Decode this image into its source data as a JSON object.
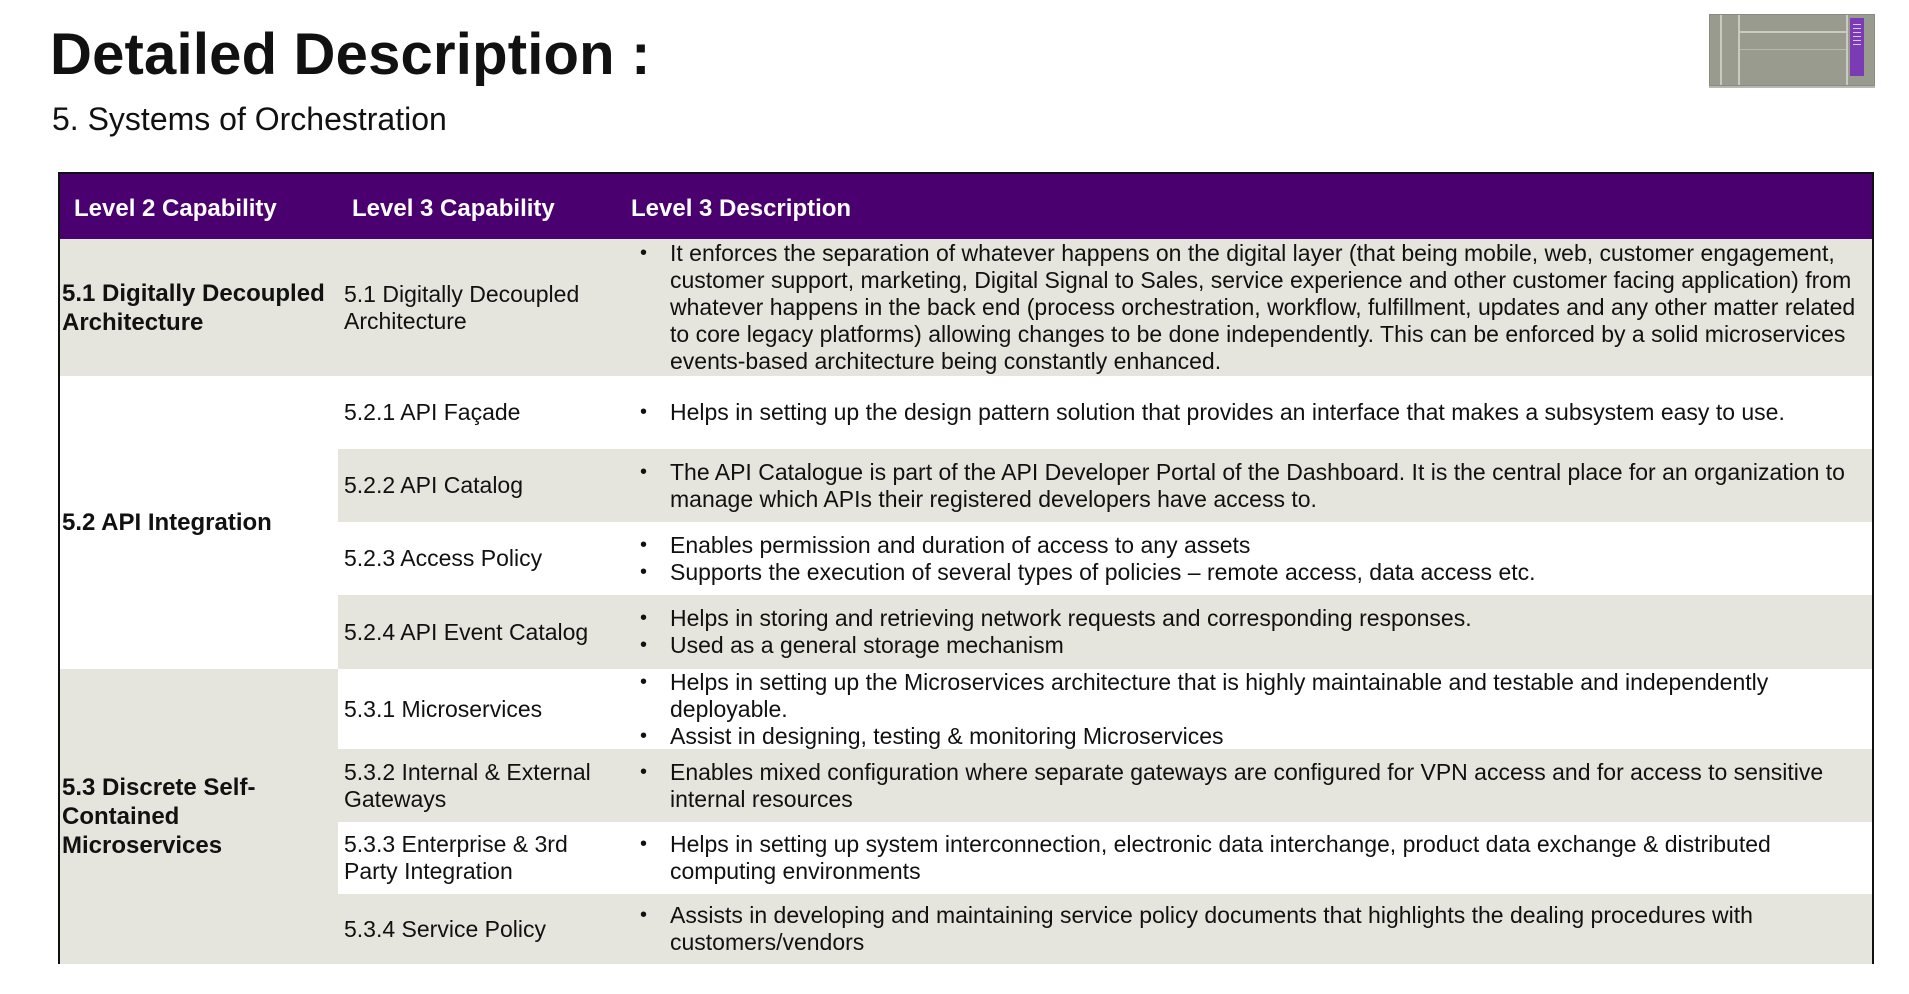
{
  "slide": {
    "title": "Detailed Description :",
    "subtitle": "5. Systems of Orchestration"
  },
  "table": {
    "headers": [
      "Level 2 Capability",
      "Level 3 Capability",
      "Level 3 Description"
    ],
    "groups": [
      {
        "level2": "5.1 Digitally Decoupled Architecture",
        "rows": [
          {
            "level3": "5.1 Digitally Decoupled Architecture",
            "bullets": [
              "It enforces the separation of whatever happens on the digital layer (that being mobile, web, customer engagement, customer support, marketing, Digital Signal to Sales, service experience and other customer facing application) from whatever happens in the back end (process orchestration, workflow, fulfillment, updates and any other matter related to core legacy platforms) allowing changes to be done independently. This can be enforced by a solid microservices events-based architecture being constantly enhanced."
            ]
          }
        ]
      },
      {
        "level2": "5.2 API Integration",
        "rows": [
          {
            "level3": "5.2.1 API Façade",
            "bullets": [
              "Helps in setting up the design pattern solution that provides an interface that makes a subsystem easy to use."
            ]
          },
          {
            "level3": "5.2.2 API Catalog",
            "bullets": [
              "The API Catalogue is part of the API Developer Portal of the Dashboard. It is the central place for an organization to manage which APIs their registered developers have access to."
            ]
          },
          {
            "level3": "5.2.3 Access Policy",
            "bullets": [
              "Enables permission and duration of access to any assets",
              "Supports the execution of several types of policies – remote access, data access etc."
            ]
          },
          {
            "level3": "5.2.4 API Event Catalog",
            "bullets": [
              "Helps in storing and retrieving network requests and corresponding responses.",
              "Used as a general storage mechanism"
            ]
          }
        ]
      },
      {
        "level2": "5.3 Discrete Self-Contained Microservices",
        "rows": [
          {
            "level3": "5.3.1 Microservices",
            "bullets": [
              "Helps in setting up the Microservices architecture that is highly maintainable and testable and independently deployable.",
              "Assist in designing, testing & monitoring Microservices"
            ]
          },
          {
            "level3": "5.3.2 Internal & External Gateways",
            "bullets": [
              "Enables mixed configuration where separate gateways are configured for VPN access and for access to sensitive internal resources"
            ]
          },
          {
            "level3": "5.3.3 Enterprise  & 3rd Party Integration",
            "bullets": [
              "Helps in setting up system interconnection, electronic data interchange, product data exchange & distributed computing environments"
            ]
          },
          {
            "level3": "5.3.4 Service Policy",
            "bullets": [
              "Assists in developing and maintaining service policy documents that highlights the dealing procedures with customers/vendors"
            ]
          }
        ]
      }
    ]
  },
  "colors": {
    "header_bg": "#4b0070",
    "row_shade": "#e5e5dd",
    "header_text": "#ffffff"
  },
  "icons": {
    "slide_thumbnail": "slide-thumbnail-icon"
  }
}
